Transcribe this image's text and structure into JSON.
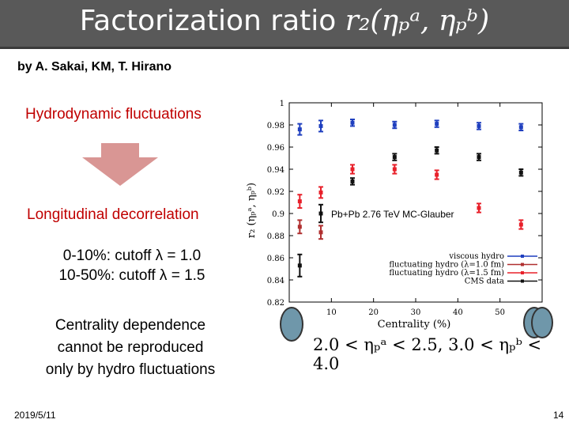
{
  "slide": {
    "title_prefix": "Factorization ratio ",
    "title_math": "r₂(ηₚᵃ, ηₚᵇ)",
    "authors": "by A. Sakai, KM, T. Hirano",
    "hydro_fluct": "Hydrodynamic fluctuations",
    "longitudinal": "Longitudinal  decorrelation",
    "cutoff_line1": "0-10%: cutoff λ = 1.0",
    "cutoff_line2": "10-50%: cutoff λ = 1.5",
    "centrality_line1": "Centrality dependence",
    "centrality_line2": "cannot be reproduced",
    "centrality_line3": "only by hydro fluctuations",
    "date": "2019/5/11",
    "page": "14",
    "eta_range": "2.0 < ηₚᵃ < 2.5, 3.0 < ηₚᵇ < 4.0"
  },
  "colors": {
    "title_bg": "#595959",
    "accent_red": "#c00000",
    "arrow_fill": "#d99694",
    "viscous": "#1f3fbf",
    "fluct1": "#b03030",
    "fluct15": "#e8202a",
    "cms": "#111111"
  },
  "chart_data": {
    "type": "scatter",
    "title": "",
    "annotation": "Pb+Pb 2.76 TeV MC-Glauber",
    "xlabel": "Centrality (%)",
    "ylabel": "r₂ (ηₚᵃ, ηₚᵇ)",
    "xlim": [
      0,
      60
    ],
    "ylim": [
      0.82,
      1.0
    ],
    "xticks": [
      0,
      10,
      20,
      30,
      40,
      50,
      60
    ],
    "yticks": [
      0.82,
      0.84,
      0.86,
      0.88,
      0.9,
      0.92,
      0.94,
      0.96,
      0.98,
      1
    ],
    "legend_position": "bottom-right",
    "series": [
      {
        "name": "viscous hydro",
        "color": "#1f3fbf",
        "x": [
          2.5,
          7.5,
          15,
          25,
          35,
          45,
          55
        ],
        "y": [
          0.976,
          0.979,
          0.982,
          0.98,
          0.981,
          0.979,
          0.978
        ],
        "err": [
          0.005,
          0.005,
          0.003,
          0.003,
          0.003,
          0.003,
          0.003
        ]
      },
      {
        "name": "fluctuating hydro (λ=1.0 fm)",
        "color": "#b03030",
        "x": [
          2.5,
          7.5
        ],
        "y": [
          0.888,
          0.883
        ],
        "err": [
          0.006,
          0.006
        ]
      },
      {
        "name": "fluctuating hydro (λ=1.5 fm)",
        "color": "#e8202a",
        "x": [
          2.5,
          7.5,
          15,
          25,
          35,
          45,
          55
        ],
        "y": [
          0.911,
          0.919,
          0.94,
          0.94,
          0.935,
          0.905,
          0.89
        ],
        "err": [
          0.006,
          0.005,
          0.004,
          0.004,
          0.004,
          0.004,
          0.004
        ]
      },
      {
        "name": "CMS data",
        "color": "#111111",
        "x": [
          2.5,
          7.5,
          15,
          25,
          35,
          45,
          55
        ],
        "y": [
          0.853,
          0.9,
          0.929,
          0.951,
          0.957,
          0.951,
          0.937
        ],
        "err": [
          0.01,
          0.008,
          0.003,
          0.003,
          0.003,
          0.003,
          0.003
        ]
      }
    ]
  }
}
